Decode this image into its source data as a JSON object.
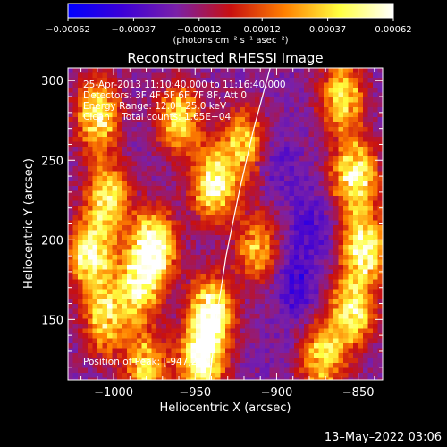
{
  "chart_data": {
    "type": "heatmap",
    "title": "Reconstructed RHESSI Image",
    "xlabel": "Heliocentric X (arcsec)",
    "ylabel": "Heliocentric Y (arcsec)",
    "xlim": [
      -1028,
      -835
    ],
    "ylim": [
      112,
      308
    ],
    "xticks": [
      -1000,
      -950,
      -900,
      -850
    ],
    "xtick_labels": [
      "−1000",
      "−950",
      "−900",
      "−850"
    ],
    "yticks": [
      150,
      200,
      250,
      300
    ],
    "ytick_labels": [
      "150",
      "200",
      "250",
      "300"
    ],
    "colorbar": {
      "min": -0.00062,
      "max": 0.00062,
      "ticks": [
        -0.00062,
        -0.00037,
        -0.00012,
        0.00012,
        0.00037,
        0.00062
      ],
      "tick_labels": [
        "−0.00062",
        "−0.00037",
        "−0.00012",
        "0.00012",
        "0.00037",
        "0.00062"
      ],
      "unit_label": "(photons cm⁻² s⁻¹ asec⁻²)",
      "colors": [
        "#0000ff",
        "#3c00d8",
        "#7a20a8",
        "#c81010",
        "#ff8000",
        "#ffff40",
        "#ffffff"
      ]
    },
    "annotations": [
      "25-Apr-2013 11:10:40.000 to 11:16:40.000",
      "Detectors: 3F 4F 5F 6F 7F 8F, Att 0",
      "Energy Range: 12.0 - 25.0 keV",
      "Clean    Total counts: 1.65E+04"
    ],
    "peak_label": "Position of Peak: [-947,237]",
    "peak_position": [
      -947,
      237
    ],
    "limb_curve": [
      [
        -941,
        112
      ],
      [
        -937,
        150
      ],
      [
        -931,
        190
      ],
      [
        -923,
        230
      ],
      [
        -914,
        270
      ],
      [
        -904,
        308
      ]
    ],
    "bright_sources": [
      {
        "x": -1014,
        "y": 190,
        "intensity": 0.00055
      },
      {
        "x": -1010,
        "y": 278,
        "intensity": 0.0005
      },
      {
        "x": -1003,
        "y": 226,
        "intensity": 0.00045
      },
      {
        "x": -1005,
        "y": 150,
        "intensity": 0.0004
      },
      {
        "x": -975,
        "y": 196,
        "intensity": 0.00062
      },
      {
        "x": -985,
        "y": 172,
        "intensity": 0.0005
      },
      {
        "x": -960,
        "y": 276,
        "intensity": 0.0004
      },
      {
        "x": -938,
        "y": 235,
        "intensity": 0.0006
      },
      {
        "x": -940,
        "y": 155,
        "intensity": 0.00058
      },
      {
        "x": -946,
        "y": 125,
        "intensity": 0.00062
      },
      {
        "x": -920,
        "y": 262,
        "intensity": 0.00035
      },
      {
        "x": -912,
        "y": 195,
        "intensity": 0.0003
      },
      {
        "x": -852,
        "y": 240,
        "intensity": 0.0006
      },
      {
        "x": -846,
        "y": 195,
        "intensity": 0.00055
      },
      {
        "x": -854,
        "y": 155,
        "intensity": 0.0005
      },
      {
        "x": -860,
        "y": 290,
        "intensity": 0.00045
      },
      {
        "x": -872,
        "y": 125,
        "intensity": 0.0004
      },
      {
        "x": -980,
        "y": 120,
        "intensity": 0.0004
      },
      {
        "x": -900,
        "y": 130,
        "intensity": -0.0002
      },
      {
        "x": -880,
        "y": 210,
        "intensity": -0.00035
      },
      {
        "x": -900,
        "y": 250,
        "intensity": -0.0003
      },
      {
        "x": -960,
        "y": 160,
        "intensity": -0.0002
      },
      {
        "x": -990,
        "y": 250,
        "intensity": -0.0002
      },
      {
        "x": -888,
        "y": 172,
        "intensity": -0.0004
      }
    ]
  },
  "footer": {
    "timestamp": "13–May–2022 03:06"
  }
}
